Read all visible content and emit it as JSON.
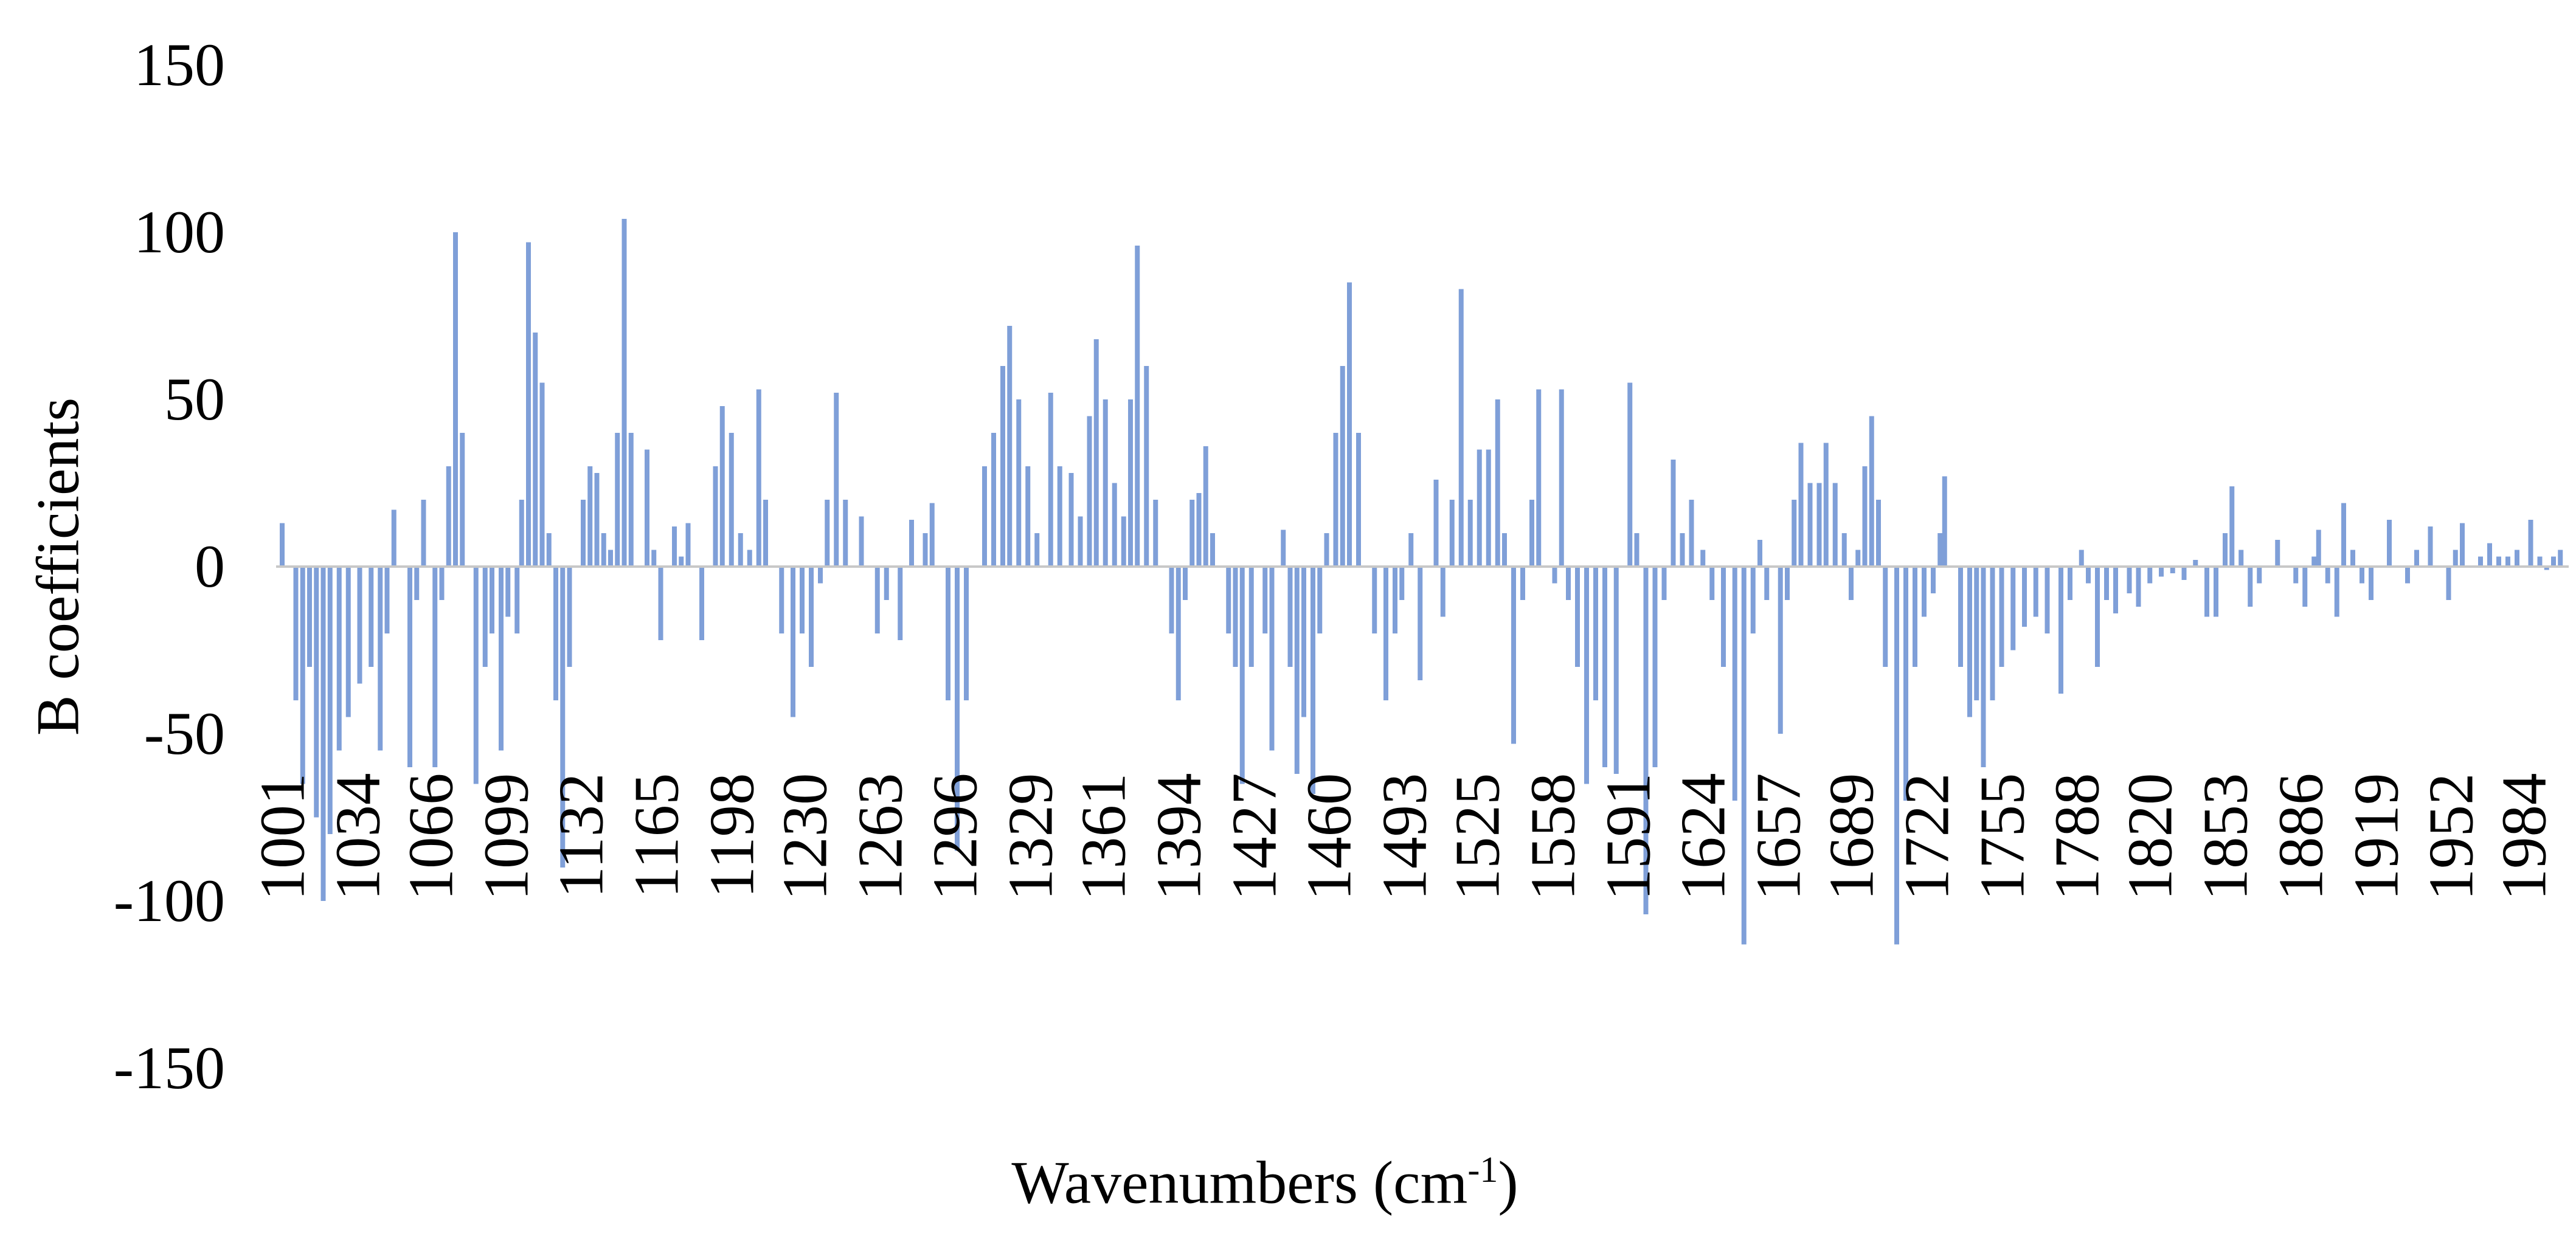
{
  "chart_data": {
    "type": "bar",
    "xlabel": "Wavenumbers (cm",
    "xlabel_sup": "-1",
    "xlabel_close": ")",
    "ylabel": "B coefficients",
    "ylim": [
      -150,
      150
    ],
    "xlim": [
      1001,
      2001
    ],
    "y_ticks": [
      150,
      100,
      50,
      0,
      -50,
      -100,
      -150
    ],
    "x_tick_labels": [
      "1001",
      "1034",
      "1066",
      "1099",
      "1132",
      "1165",
      "1198",
      "1230",
      "1263",
      "1296",
      "1329",
      "1361",
      "1394",
      "1427",
      "1460",
      "1493",
      "1525",
      "1558",
      "1591",
      "1624",
      "1657",
      "1689",
      "1722",
      "1755",
      "1788",
      "1820",
      "1853",
      "1886",
      "1919",
      "1952",
      "1984"
    ],
    "grid": false,
    "legend": "none",
    "bar_color": "#7f9fd8",
    "zero_line_color": "#c8c8c8",
    "x": [
      1001,
      1004,
      1007,
      1010,
      1013,
      1016,
      1019,
      1022,
      1026,
      1030,
      1035,
      1040,
      1044,
      1047,
      1050,
      1053,
      1057,
      1060,
      1063,
      1065,
      1068,
      1071,
      1074,
      1077,
      1080,
      1082,
      1086,
      1090,
      1093,
      1097,
      1100,
      1104,
      1106,
      1109,
      1112,
      1115,
      1118,
      1121,
      1124,
      1127,
      1130,
      1133,
      1136,
      1139,
      1142,
      1145,
      1148,
      1151,
      1154,
      1157,
      1161,
      1164,
      1167,
      1170,
      1173,
      1176,
      1179,
      1182,
      1185,
      1188,
      1191,
      1194,
      1198,
      1202,
      1206,
      1210,
      1213,
      1216,
      1220,
      1225,
      1229,
      1233,
      1237,
      1240,
      1244,
      1248,
      1251,
      1255,
      1258,
      1262,
      1266,
      1272,
      1274,
      1277,
      1280,
      1283,
      1286,
      1289,
      1293,
      1297,
      1301,
      1305,
      1309,
      1313,
      1317,
      1320,
      1324,
      1328,
      1332,
      1338,
      1342,
      1347,
      1351,
      1355,
      1358,
      1362,
      1366,
      1370,
      1373,
      1376,
      1380,
      1384,
      1388,
      1391,
      1394,
      1397,
      1400,
      1403,
      1406,
      1409,
      1412,
      1416,
      1419,
      1422,
      1426,
      1429,
      1432,
      1435,
      1438,
      1440,
      1443,
      1446,
      1449,
      1453,
      1456,
      1459,
      1463,
      1466,
      1469,
      1473,
      1476,
      1480,
      1485,
      1489,
      1492,
      1496,
      1500,
      1503,
      1507,
      1510,
      1514,
      1518,
      1522,
      1526,
      1530,
      1534,
      1537,
      1541,
      1545,
      1549,
      1552,
      1556,
      1559,
      1562,
      1565,
      1569,
      1573,
      1577,
      1581,
      1586,
      1589,
      1592,
      1595,
      1599,
      1603,
      1607,
      1611,
      1615,
      1619,
      1624,
      1628,
      1633,
      1638,
      1642,
      1646,
      1649,
      1652,
      1654,
      1658,
      1661,
      1664,
      1667,
      1671,
      1675,
      1678,
      1682,
      1686,
      1689,
      1692,
      1695,
      1698,
      1701,
      1704,
      1709,
      1713,
      1717,
      1721,
      1725,
      1728,
      1730,
      1733,
      1737,
      1741,
      1744,
      1747,
      1751,
      1755,
      1760,
      1765,
      1770,
      1775,
      1781,
      1785,
      1790,
      1793,
      1797,
      1801,
      1805,
      1808,
      1811,
      1815,
      1820,
      1825,
      1830,
      1835,
      1840,
      1845,
      1849,
      1853,
      1856,
      1860,
      1864,
      1868,
      1872,
      1876,
      1880,
      1884,
      1888,
      1892,
      1894,
      1898,
      1902,
      1905,
      1909,
      1913,
      1917,
      1921,
      1925,
      1929,
      1933,
      1937,
      1943,
      1947,
      1951,
      1954,
      1957,
      1961,
      1965,
      1969,
      1973,
      1977,
      1981,
      1987,
      1991,
      1994,
      1997,
      2000
    ],
    "values": [
      13,
      0,
      -40,
      -65,
      -30,
      -75,
      -100,
      -80,
      -55,
      -45,
      -35,
      -30,
      -55,
      -20,
      17,
      0,
      -60,
      -10,
      20,
      0,
      -60,
      -10,
      30,
      100,
      40,
      0,
      -65,
      -30,
      -20,
      -55,
      -15,
      -20,
      20,
      97,
      70,
      55,
      10,
      -40,
      -90,
      -30,
      0,
      20,
      30,
      28,
      10,
      5,
      40,
      104,
      40,
      0,
      35,
      5,
      -22,
      0,
      12,
      3,
      13,
      0,
      -22,
      0,
      30,
      48,
      40,
      10,
      5,
      53,
      20,
      0,
      -20,
      -45,
      -20,
      -30,
      -5,
      20,
      52,
      20,
      0,
      15,
      0,
      -20,
      -10,
      -22,
      0,
      14,
      0,
      10,
      19,
      0,
      -40,
      -85,
      -40,
      0,
      30,
      40,
      60,
      72,
      50,
      30,
      10,
      52,
      30,
      28,
      15,
      45,
      68,
      50,
      25,
      15,
      50,
      96,
      60,
      20,
      0,
      -20,
      -40,
      -10,
      20,
      22,
      36,
      10,
      0,
      -20,
      -30,
      -65,
      -30,
      0,
      -20,
      -55,
      0,
      11,
      -30,
      -62,
      -45,
      -68,
      -20,
      10,
      40,
      60,
      85,
      40,
      0,
      -20,
      -40,
      -20,
      -10,
      10,
      -34,
      0,
      26,
      -15,
      20,
      83,
      20,
      35,
      35,
      50,
      10,
      -53,
      -10,
      20,
      53,
      0,
      -5,
      53,
      -10,
      -30,
      -65,
      -40,
      -60,
      -62,
      0,
      55,
      10,
      -104,
      -60,
      -10,
      32,
      10,
      20,
      5,
      -10,
      -30,
      -70,
      -113,
      -20,
      8,
      -10,
      0,
      -50,
      -10,
      20,
      37,
      25,
      25,
      37,
      25,
      10,
      -10,
      5,
      30,
      45,
      20,
      -30,
      -113,
      -70,
      -30,
      -15,
      -8,
      10,
      27,
      0,
      -30,
      -45,
      -40,
      -60,
      -40,
      -30,
      -25,
      -18,
      -15,
      -20,
      -38,
      -10,
      5,
      -5,
      -30,
      -10,
      -14,
      0,
      -8,
      -12,
      -5,
      -3,
      -2,
      -4,
      2,
      -15,
      -15,
      10,
      24,
      5,
      -12,
      -5,
      0,
      8,
      0,
      -5,
      -12,
      3,
      11,
      -5,
      -15,
      19,
      5,
      -5,
      -10,
      0,
      14,
      0,
      -5,
      5,
      12,
      0,
      -10,
      5,
      13,
      0,
      3,
      7,
      3,
      3,
      5,
      14,
      3,
      -1,
      3,
      5
    ]
  }
}
